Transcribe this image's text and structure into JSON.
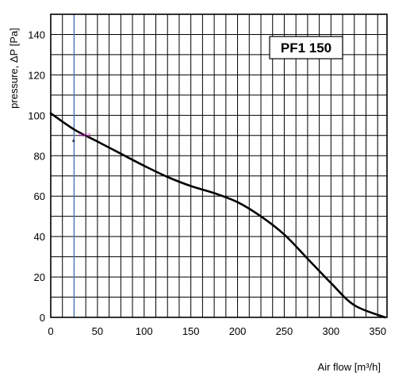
{
  "chart_data": {
    "type": "line",
    "title": "PF1 150",
    "xlabel": "Air flow [m³/h]",
    "ylabel": "pressure, ΔP [Pa]",
    "xlim": [
      0,
      360
    ],
    "ylim": [
      0,
      150
    ],
    "x_ticks": [
      0,
      50,
      100,
      150,
      200,
      250,
      300,
      350
    ],
    "y_ticks": [
      0,
      20,
      40,
      60,
      80,
      100,
      120,
      140
    ],
    "grid": true,
    "series": [
      {
        "color": "#000000",
        "x": [
          0,
          25,
          50,
          75,
          100,
          125,
          150,
          175,
          200,
          225,
          250,
          275,
          300,
          325,
          358
        ],
        "y": [
          101,
          93,
          87,
          81,
          75,
          69.5,
          65,
          61.5,
          57,
          50,
          41,
          29,
          17,
          6,
          0
        ]
      }
    ],
    "vertical_marker": {
      "x": 25,
      "color": "#4a78b8"
    },
    "operating_point": {
      "x": 25,
      "y": 88,
      "label": "nasz",
      "label_color": "#cc33cc"
    }
  }
}
